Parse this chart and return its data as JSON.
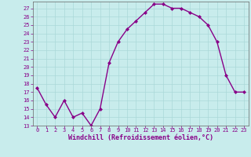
{
  "x": [
    0,
    1,
    2,
    3,
    4,
    5,
    6,
    7,
    8,
    9,
    10,
    11,
    12,
    13,
    14,
    15,
    16,
    17,
    18,
    19,
    20,
    21,
    22,
    23
  ],
  "y": [
    17.5,
    15.5,
    14.0,
    16.0,
    14.0,
    14.5,
    13.0,
    15.0,
    20.5,
    23.0,
    24.5,
    25.5,
    26.5,
    27.5,
    27.5,
    27.0,
    27.0,
    26.5,
    26.0,
    25.0,
    23.0,
    19.0,
    17.0,
    17.0
  ],
  "line_color": "#880088",
  "marker": "D",
  "marker_size": 2.0,
  "bg_color": "#c8ecec",
  "grid_color": "#aad8d8",
  "xlabel": "Windchill (Refroidissement éolien,°C)",
  "ylabel": "",
  "ylim": [
    13,
    27.8
  ],
  "xlim": [
    -0.5,
    23.5
  ],
  "yticks": [
    13,
    14,
    15,
    16,
    17,
    18,
    19,
    20,
    21,
    22,
    23,
    24,
    25,
    26,
    27
  ],
  "xticks": [
    0,
    1,
    2,
    3,
    4,
    5,
    6,
    7,
    8,
    9,
    10,
    11,
    12,
    13,
    14,
    15,
    16,
    17,
    18,
    19,
    20,
    21,
    22,
    23
  ],
  "tick_fontsize": 5.0,
  "xlabel_fontsize": 6.0,
  "line_width": 1.0
}
